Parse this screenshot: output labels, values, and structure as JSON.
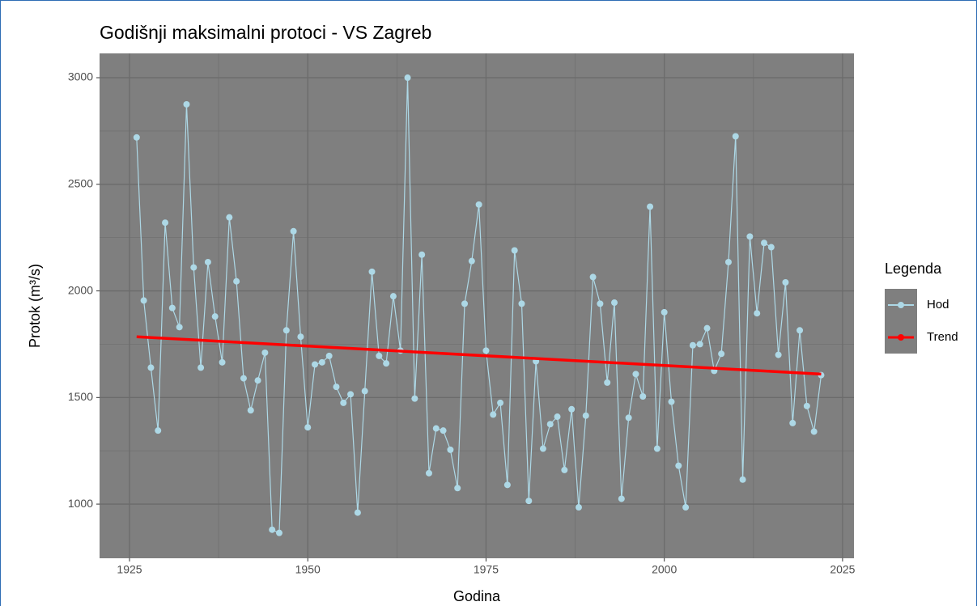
{
  "chart_data": {
    "type": "line",
    "title": "Godišnji maksimalni protoci - VS Zagreb",
    "x_label": "Godina",
    "y_label": "Protok (m³/s)",
    "legend_title": "Legenda",
    "legend_position": "right",
    "grid": true,
    "xlim": [
      1920.8,
      2026.6
    ],
    "ylim": [
      746,
      3114
    ],
    "xticks": [
      1925,
      1950,
      1975,
      2000,
      2025
    ],
    "yticks": [
      1000,
      1500,
      2000,
      2500,
      3000
    ],
    "x": [
      1926,
      1927,
      1928,
      1929,
      1930,
      1931,
      1932,
      1933,
      1934,
      1935,
      1936,
      1937,
      1938,
      1939,
      1940,
      1941,
      1942,
      1943,
      1944,
      1945,
      1946,
      1947,
      1948,
      1949,
      1950,
      1951,
      1952,
      1953,
      1954,
      1955,
      1956,
      1957,
      1958,
      1959,
      1960,
      1961,
      1962,
      1963,
      1964,
      1965,
      1966,
      1967,
      1968,
      1969,
      1970,
      1971,
      1972,
      1973,
      1974,
      1975,
      1976,
      1977,
      1978,
      1979,
      1980,
      1981,
      1982,
      1983,
      1984,
      1985,
      1986,
      1987,
      1988,
      1989,
      1990,
      1991,
      1992,
      1993,
      1994,
      1995,
      1996,
      1997,
      1998,
      1999,
      2000,
      2001,
      2002,
      2003,
      2004,
      2005,
      2006,
      2007,
      2008,
      2009,
      2010,
      2011,
      2012,
      2013,
      2014,
      2015,
      2016,
      2017,
      2018,
      2019,
      2020,
      2021,
      2022
    ],
    "series": [
      {
        "name": "Hod",
        "color": "#add8e6",
        "markers": true,
        "values": [
          2720,
          1955,
          1640,
          1345,
          2320,
          1920,
          1830,
          2875,
          2110,
          1640,
          2135,
          1880,
          1665,
          2345,
          2045,
          1590,
          1440,
          1580,
          1710,
          880,
          865,
          1815,
          2280,
          1785,
          1360,
          1655,
          1665,
          1695,
          1550,
          1475,
          1515,
          960,
          1530,
          2090,
          1695,
          1660,
          1975,
          1720,
          3000,
          1495,
          2170,
          1145,
          1355,
          1345,
          1255,
          1075,
          1940,
          2140,
          2405,
          1720,
          1420,
          1475,
          1090,
          2190,
          1940,
          1015,
          1670,
          1260,
          1375,
          1410,
          1160,
          1445,
          985,
          1415,
          2065,
          1940,
          1570,
          1945,
          1025,
          1405,
          1610,
          1505,
          2395,
          1260,
          1900,
          1480,
          1180,
          985,
          1745,
          1750,
          1825,
          1625,
          1705,
          2135,
          2725,
          1115,
          2255,
          1895,
          2225,
          2205,
          1700,
          2040,
          1380,
          1815,
          1460,
          1340,
          1605
        ]
      },
      {
        "name": "Trend",
        "color": "#ff0000",
        "markers": false,
        "x": [
          1926,
          2022
        ],
        "values": [
          1785,
          1610
        ]
      }
    ]
  }
}
